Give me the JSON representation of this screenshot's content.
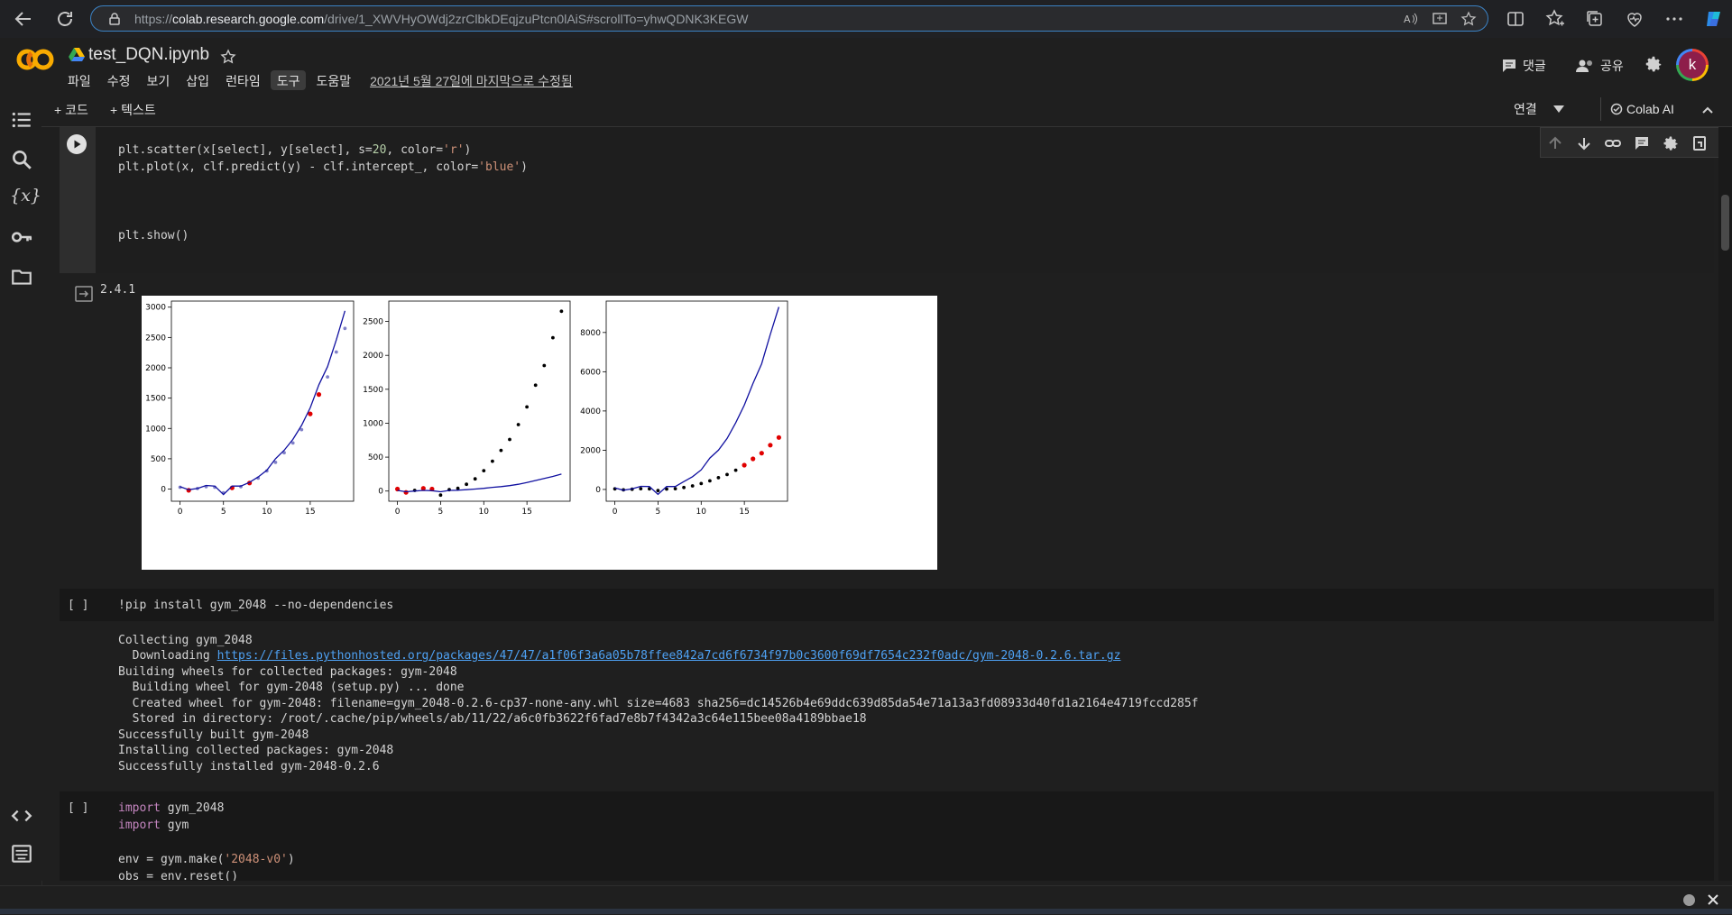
{
  "browser": {
    "url_prefix": "https://",
    "url_host": "colab.research.google.com",
    "url_rest": "/drive/1_XWVHyOWdj2zrClbkDEqjzuPtcn0lAiS#scrollTo=yhwQDNK3KEGW"
  },
  "header": {
    "logo": "CO",
    "title": "test_DQN.ipynb",
    "menu": [
      "파일",
      "수정",
      "보기",
      "삽입",
      "런타임",
      "도구",
      "도움말"
    ],
    "active_menu": "도구",
    "last_edit": "2021년 5월 27일에 마지막으로 수정됨",
    "comment_label": "댓글",
    "share_label": "공유",
    "avatar_letter": "k"
  },
  "toolbar": {
    "add_code": "+ 코드",
    "add_text": "+ 텍스트",
    "connect": "연결",
    "colab_ai": "Colab AI"
  },
  "cells": {
    "plot_cell": {
      "code": [
        {
          "t1": "plt.scatter(x[select], y[select], s=",
          "n1": "20",
          "t2": ", color=",
          "s1": "'r'",
          "t3": ")"
        },
        {
          "t1": "plt.plot(x, clf.predict(y) - clf.intercept_, color=",
          "s1": "'blue'",
          "t3": ")"
        }
      ],
      "code_last": "plt.show()",
      "output_version": "2.4.1"
    },
    "pip_cell": {
      "bracket": "[ ]",
      "code": "!pip install gym_2048 --no-dependencies",
      "output": {
        "collecting": "Collecting gym_2048",
        "downloading_label": "  Downloading ",
        "downloading_link": "https://files.pythonhosted.org/packages/47/47/a1f06f3a6a05b78ffee842a7cd6f6734f97b0c3600f69df7654c232f0adc/gym-2048-0.2.6.tar.gz",
        "lines": [
          "Building wheels for collected packages: gym-2048",
          "  Building wheel for gym-2048 (setup.py) ... done",
          "  Created wheel for gym-2048: filename=gym_2048-0.2.6-cp37-none-any.whl size=4683 sha256=dc14526b4e69ddc639d85da54e71a13a3fd08933d40fd1a2164e4719fccd285f",
          "  Stored in directory: /root/.cache/pip/wheels/ab/11/22/a6c0fb3622f6fad7e8b7f4342a3c64e115bee08a4189bbae18",
          "Successfully built gym-2048",
          "Installing collected packages: gym-2048",
          "Successfully installed gym-2048-0.2.6"
        ]
      }
    },
    "import_cell": {
      "bracket": "[ ]",
      "line1_kw": "import",
      "line1_rest": " gym_2048",
      "line2_kw": "import",
      "line2_rest": " gym",
      "line3_a": "env = gym.make(",
      "line3_s": "'2048-v0'",
      "line3_b": ")",
      "line4": "obs = env.reset()"
    }
  },
  "chart_data": [
    {
      "type": "scatter",
      "title": "",
      "xlabel": "",
      "ylabel": "",
      "xlim": [
        -1,
        20
      ],
      "ylim": [
        -200,
        3100
      ],
      "xticks": [
        0,
        5,
        10,
        15
      ],
      "yticks": [
        0,
        500,
        1000,
        1500,
        2000,
        2500,
        3000
      ],
      "series": [
        {
          "kind": "points",
          "color": "#8080c8",
          "x": [
            0,
            1,
            2,
            3,
            4,
            5,
            6,
            7,
            8,
            9,
            10,
            11,
            12,
            13,
            14,
            15,
            16,
            17,
            18,
            19
          ],
          "y": [
            30,
            -20,
            10,
            40,
            30,
            -60,
            20,
            40,
            100,
            180,
            300,
            440,
            600,
            760,
            980,
            1240,
            1560,
            1850,
            2260,
            2650
          ]
        },
        {
          "kind": "points",
          "color": "#e00000",
          "x": [
            1,
            6,
            8,
            15,
            16
          ],
          "y": [
            -20,
            20,
            100,
            1240,
            1560
          ]
        },
        {
          "kind": "line",
          "color": "#1010a0",
          "x": [
            0,
            1,
            2,
            3,
            4,
            5,
            6,
            7,
            8,
            9,
            10,
            11,
            12,
            13,
            14,
            15,
            16,
            17,
            18,
            19
          ],
          "y": [
            40,
            -10,
            10,
            60,
            50,
            -90,
            50,
            50,
            110,
            200,
            310,
            500,
            640,
            820,
            1050,
            1340,
            1720,
            2020,
            2460,
            2940
          ]
        }
      ]
    },
    {
      "type": "scatter",
      "title": "",
      "xlabel": "",
      "ylabel": "",
      "xlim": [
        -1,
        20
      ],
      "ylim": [
        -150,
        2800
      ],
      "xticks": [
        0,
        5,
        10,
        15
      ],
      "yticks": [
        0,
        500,
        1000,
        1500,
        2000,
        2500
      ],
      "series": [
        {
          "kind": "points",
          "color": "#000000",
          "x": [
            0,
            1,
            2,
            3,
            4,
            5,
            6,
            7,
            8,
            9,
            10,
            11,
            12,
            13,
            14,
            15,
            16,
            17,
            18,
            19
          ],
          "y": [
            30,
            -20,
            10,
            40,
            30,
            -60,
            20,
            40,
            100,
            180,
            300,
            440,
            600,
            760,
            980,
            1240,
            1560,
            1850,
            2260,
            2650
          ]
        },
        {
          "kind": "points",
          "color": "#e00000",
          "x": [
            0,
            1,
            3,
            4
          ],
          "y": [
            30,
            -20,
            40,
            30
          ]
        },
        {
          "kind": "line",
          "color": "#1010a0",
          "x": [
            0,
            1,
            2,
            3,
            4,
            5,
            6,
            7,
            8,
            9,
            10,
            11,
            12,
            13,
            14,
            15,
            16,
            17,
            18,
            19
          ],
          "y": [
            10,
            -10,
            0,
            10,
            5,
            -10,
            10,
            12,
            20,
            30,
            40,
            55,
            65,
            80,
            100,
            125,
            155,
            185,
            215,
            250
          ]
        }
      ]
    },
    {
      "type": "scatter",
      "title": "",
      "xlabel": "",
      "ylabel": "",
      "xlim": [
        -1,
        20
      ],
      "ylim": [
        -600,
        9600
      ],
      "xticks": [
        0,
        5,
        10,
        15
      ],
      "yticks": [
        0,
        2000,
        4000,
        6000,
        8000
      ],
      "series": [
        {
          "kind": "points",
          "color": "#000000",
          "x": [
            0,
            1,
            2,
            3,
            4,
            5,
            6,
            7,
            8,
            9,
            10,
            11,
            12,
            13,
            14,
            15,
            16,
            17,
            18,
            19
          ],
          "y": [
            30,
            -20,
            10,
            40,
            30,
            -60,
            20,
            40,
            100,
            180,
            300,
            440,
            600,
            760,
            980,
            1240,
            1560,
            1850,
            2260,
            2650
          ]
        },
        {
          "kind": "points",
          "color": "#e00000",
          "x": [
            15,
            16,
            17,
            18,
            19
          ],
          "y": [
            1240,
            1560,
            1850,
            2260,
            2650
          ]
        },
        {
          "kind": "line",
          "color": "#1010a0",
          "x": [
            0,
            1,
            2,
            3,
            4,
            5,
            6,
            7,
            8,
            9,
            10,
            11,
            12,
            13,
            14,
            15,
            16,
            17,
            18,
            19
          ],
          "y": [
            80,
            -40,
            30,
            160,
            150,
            -250,
            150,
            150,
            400,
            650,
            1000,
            1600,
            2000,
            2600,
            3400,
            4300,
            5400,
            6400,
            7900,
            9300
          ]
        }
      ]
    }
  ]
}
